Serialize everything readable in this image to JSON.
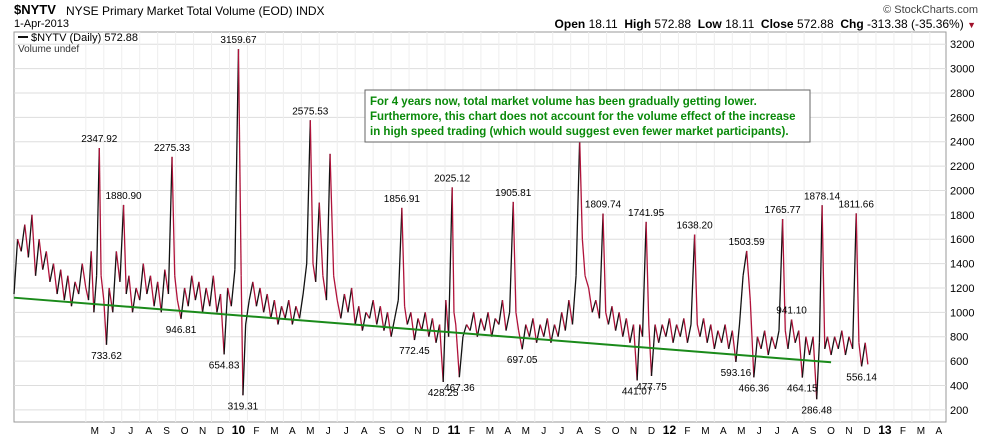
{
  "header": {
    "symbol": "$NYTV",
    "name": "NYSE Primary Market Total Volume (EOD)",
    "exchange": "INDX",
    "date": "1-Apr-2013",
    "brand": "© StockCharts.com",
    "ohlc": {
      "open_label": "Open",
      "open": "18.11",
      "high_label": "High",
      "high": "572.88",
      "low_label": "Low",
      "low": "18.11",
      "close_label": "Close",
      "close": "572.88",
      "chg_label": "Chg",
      "chg": "-313.38 (-35.36%)"
    }
  },
  "legend": {
    "series": "$NYTV (Daily) 572.88",
    "volume": "Volume undef"
  },
  "annotation": {
    "lines": [
      "For 4 years now, total market volume has been gradually getting lower.",
      "Furthermore, this chart does not account for the volume effect of the increase",
      "in high speed trading (which would suggest even fewer market participants)."
    ]
  },
  "colors": {
    "series_up": "#111111",
    "series_down": "#b0123a",
    "trend": "#1a8a1a",
    "annotation_text": "#0a8a0a",
    "grid": "#dddddd"
  },
  "chart_data": {
    "type": "line",
    "ylim": [
      100,
      3300
    ],
    "yticks": [
      200,
      400,
      600,
      800,
      1000,
      1200,
      1400,
      1600,
      1800,
      2000,
      2200,
      2400,
      2600,
      2800,
      3000,
      3200
    ],
    "x_labels": [
      "M",
      "J",
      "J",
      "A",
      "S",
      "O",
      "N",
      "D",
      "10",
      "F",
      "M",
      "A",
      "M",
      "J",
      "J",
      "A",
      "S",
      "O",
      "N",
      "D",
      "11",
      "F",
      "M",
      "A",
      "M",
      "J",
      "J",
      "A",
      "S",
      "O",
      "N",
      "D",
      "12",
      "F",
      "M",
      "A",
      "M",
      "J",
      "J",
      "A",
      "S",
      "O",
      "N",
      "D",
      "13",
      "F",
      "M",
      "A"
    ],
    "x_label_months": [
      4,
      5,
      6,
      7,
      8,
      9,
      10,
      11,
      12,
      13,
      14,
      15,
      16,
      17,
      18,
      19,
      20,
      21,
      22,
      23,
      24,
      25,
      26,
      27,
      28,
      29,
      30,
      31,
      32,
      33,
      34,
      35,
      36,
      37,
      38,
      39,
      40,
      41,
      42,
      43,
      44,
      45,
      46,
      47,
      48,
      49,
      50,
      51
    ],
    "series_name": "$NYTV (Daily)",
    "series": [
      [
        0.0,
        1150
      ],
      [
        0.2,
        1600
      ],
      [
        0.4,
        1500
      ],
      [
        0.6,
        1720
      ],
      [
        0.8,
        1450
      ],
      [
        1.0,
        1800
      ],
      [
        1.2,
        1300
      ],
      [
        1.4,
        1600
      ],
      [
        1.6,
        1350
      ],
      [
        1.8,
        1500
      ],
      [
        2.0,
        1250
      ],
      [
        2.2,
        1400
      ],
      [
        2.4,
        1150
      ],
      [
        2.6,
        1350
      ],
      [
        2.8,
        1100
      ],
      [
        3.0,
        1300
      ],
      [
        3.2,
        1050
      ],
      [
        3.4,
        1250
      ],
      [
        3.6,
        1150
      ],
      [
        3.8,
        1400
      ],
      [
        4.0,
        1200
      ],
      [
        4.15,
        1100
      ],
      [
        4.3,
        1500
      ],
      [
        4.45,
        1000
      ],
      [
        4.6,
        1300
      ],
      [
        4.75,
        2347.92
      ],
      [
        4.85,
        1300
      ],
      [
        5.0,
        1100
      ],
      [
        5.15,
        733.62
      ],
      [
        5.3,
        1200
      ],
      [
        5.5,
        1000
      ],
      [
        5.7,
        1500
      ],
      [
        5.9,
        1250
      ],
      [
        6.1,
        1880.9
      ],
      [
        6.25,
        1150
      ],
      [
        6.4,
        1300
      ],
      [
        6.6,
        1000
      ],
      [
        6.8,
        1200
      ],
      [
        7.0,
        1100
      ],
      [
        7.2,
        1400
      ],
      [
        7.4,
        1150
      ],
      [
        7.6,
        1300
      ],
      [
        7.8,
        1050
      ],
      [
        8.0,
        1250
      ],
      [
        8.2,
        1000
      ],
      [
        8.4,
        1350
      ],
      [
        8.6,
        1150
      ],
      [
        8.8,
        2275.33
      ],
      [
        8.95,
        1300
      ],
      [
        9.1,
        1100
      ],
      [
        9.3,
        946.81
      ],
      [
        9.5,
        1200
      ],
      [
        9.7,
        1050
      ],
      [
        9.9,
        1300
      ],
      [
        10.1,
        1100
      ],
      [
        10.3,
        1250
      ],
      [
        10.5,
        1000
      ],
      [
        10.7,
        1200
      ],
      [
        10.9,
        1050
      ],
      [
        11.1,
        1300
      ],
      [
        11.3,
        1000
      ],
      [
        11.5,
        1150
      ],
      [
        11.7,
        654.83
      ],
      [
        11.9,
        1200
      ],
      [
        12.1,
        1050
      ],
      [
        12.3,
        1350
      ],
      [
        12.5,
        3159.67
      ],
      [
        12.65,
        1300
      ],
      [
        12.75,
        319.31
      ],
      [
        12.9,
        900
      ],
      [
        13.1,
        1100
      ],
      [
        13.3,
        1250
      ],
      [
        13.5,
        1050
      ],
      [
        13.7,
        1200
      ],
      [
        13.9,
        1000
      ],
      [
        14.1,
        1150
      ],
      [
        14.3,
        950
      ],
      [
        14.5,
        1100
      ],
      [
        14.7,
        900
      ],
      [
        14.9,
        1050
      ],
      [
        15.1,
        950
      ],
      [
        15.3,
        1100
      ],
      [
        15.5,
        900
      ],
      [
        15.7,
        1050
      ],
      [
        15.9,
        950
      ],
      [
        16.1,
        1150
      ],
      [
        16.3,
        1400
      ],
      [
        16.5,
        2575.53
      ],
      [
        16.65,
        1400
      ],
      [
        16.8,
        1250
      ],
      [
        17.0,
        1900
      ],
      [
        17.2,
        1300
      ],
      [
        17.4,
        1100
      ],
      [
        17.6,
        2300
      ],
      [
        17.8,
        1300
      ],
      [
        18.0,
        1100
      ],
      [
        18.2,
        950
      ],
      [
        18.4,
        1150
      ],
      [
        18.6,
        1000
      ],
      [
        18.8,
        1200
      ],
      [
        19.0,
        900
      ],
      [
        19.2,
        1050
      ],
      [
        19.4,
        850
      ],
      [
        19.6,
        1000
      ],
      [
        19.8,
        950
      ],
      [
        20.0,
        1100
      ],
      [
        20.2,
        900
      ],
      [
        20.4,
        1050
      ],
      [
        20.6,
        850
      ],
      [
        20.8,
        1000
      ],
      [
        21.0,
        800
      ],
      [
        21.2,
        950
      ],
      [
        21.4,
        1100
      ],
      [
        21.6,
        1856.91
      ],
      [
        21.75,
        1050
      ],
      [
        21.9,
        900
      ],
      [
        22.1,
        1000
      ],
      [
        22.3,
        772.45
      ],
      [
        22.5,
        950
      ],
      [
        22.7,
        850
      ],
      [
        22.9,
        1000
      ],
      [
        23.1,
        800
      ],
      [
        23.3,
        950
      ],
      [
        23.5,
        750
      ],
      [
        23.7,
        900
      ],
      [
        23.9,
        428.25
      ],
      [
        24.05,
        1100
      ],
      [
        24.2,
        800
      ],
      [
        24.4,
        2025.12
      ],
      [
        24.5,
        1000
      ],
      [
        24.6,
        900
      ],
      [
        24.8,
        467.36
      ],
      [
        25.0,
        800
      ],
      [
        25.2,
        900
      ],
      [
        25.4,
        850
      ],
      [
        25.6,
        1000
      ],
      [
        25.8,
        800
      ],
      [
        26.0,
        950
      ],
      [
        26.2,
        850
      ],
      [
        26.4,
        1000
      ],
      [
        26.6,
        800
      ],
      [
        26.8,
        950
      ],
      [
        27.0,
        900
      ],
      [
        27.2,
        1100
      ],
      [
        27.4,
        850
      ],
      [
        27.6,
        1000
      ],
      [
        27.8,
        1905.81
      ],
      [
        27.95,
        1000
      ],
      [
        28.1,
        850
      ],
      [
        28.3,
        697.05
      ],
      [
        28.5,
        900
      ],
      [
        28.7,
        800
      ],
      [
        28.9,
        950
      ],
      [
        29.1,
        750
      ],
      [
        29.3,
        900
      ],
      [
        29.5,
        800
      ],
      [
        29.7,
        950
      ],
      [
        29.9,
        750
      ],
      [
        30.1,
        900
      ],
      [
        30.3,
        800
      ],
      [
        30.5,
        1000
      ],
      [
        30.7,
        850
      ],
      [
        30.9,
        1100
      ],
      [
        31.1,
        900
      ],
      [
        31.3,
        1300
      ],
      [
        31.5,
        2425
      ],
      [
        31.65,
        1600
      ],
      [
        31.8,
        1300
      ],
      [
        32.0,
        1200
      ],
      [
        32.2,
        1000
      ],
      [
        32.4,
        1100
      ],
      [
        32.6,
        950
      ],
      [
        32.8,
        1809.74
      ],
      [
        32.95,
        1000
      ],
      [
        33.1,
        900
      ],
      [
        33.3,
        1050
      ],
      [
        33.5,
        850
      ],
      [
        33.7,
        1000
      ],
      [
        33.9,
        800
      ],
      [
        34.1,
        950
      ],
      [
        34.3,
        750
      ],
      [
        34.5,
        900
      ],
      [
        34.7,
        441.07
      ],
      [
        34.85,
        900
      ],
      [
        35.0,
        800
      ],
      [
        35.2,
        1741.95
      ],
      [
        35.35,
        900
      ],
      [
        35.5,
        477.75
      ],
      [
        35.7,
        900
      ],
      [
        35.9,
        750
      ],
      [
        36.1,
        900
      ],
      [
        36.3,
        800
      ],
      [
        36.5,
        950
      ],
      [
        36.7,
        750
      ],
      [
        36.9,
        900
      ],
      [
        37.1,
        800
      ],
      [
        37.3,
        950
      ],
      [
        37.5,
        750
      ],
      [
        37.7,
        900
      ],
      [
        37.9,
        1638.2
      ],
      [
        38.05,
        900
      ],
      [
        38.2,
        800
      ],
      [
        38.4,
        950
      ],
      [
        38.6,
        750
      ],
      [
        38.8,
        900
      ],
      [
        39.0,
        700
      ],
      [
        39.2,
        850
      ],
      [
        39.4,
        750
      ],
      [
        39.6,
        900
      ],
      [
        39.8,
        700
      ],
      [
        40.0,
        850
      ],
      [
        40.2,
        593.16
      ],
      [
        40.4,
        900
      ],
      [
        40.6,
        1300
      ],
      [
        40.8,
        1503.59
      ],
      [
        41.0,
        1100
      ],
      [
        41.2,
        466.36
      ],
      [
        41.4,
        800
      ],
      [
        41.6,
        700
      ],
      [
        41.8,
        850
      ],
      [
        42.0,
        650
      ],
      [
        42.2,
        800
      ],
      [
        42.4,
        700
      ],
      [
        42.6,
        850
      ],
      [
        42.8,
        1765.77
      ],
      [
        42.95,
        850
      ],
      [
        43.1,
        700
      ],
      [
        43.3,
        941.1
      ],
      [
        43.5,
        750
      ],
      [
        43.7,
        850
      ],
      [
        43.9,
        464.15
      ],
      [
        44.1,
        800
      ],
      [
        44.3,
        650
      ],
      [
        44.5,
        800
      ],
      [
        44.7,
        286.48
      ],
      [
        44.85,
        750
      ],
      [
        45.0,
        1878.14
      ],
      [
        45.15,
        700
      ],
      [
        45.3,
        800
      ],
      [
        45.5,
        650
      ],
      [
        45.7,
        800
      ],
      [
        45.9,
        700
      ],
      [
        46.1,
        850
      ],
      [
        46.3,
        650
      ],
      [
        46.5,
        800
      ],
      [
        46.7,
        700
      ],
      [
        46.9,
        1811.66
      ],
      [
        47.05,
        750
      ],
      [
        47.2,
        556.14
      ],
      [
        47.4,
        750
      ],
      [
        47.55,
        572.88
      ]
    ],
    "trendline": [
      [
        0.0,
        1120
      ],
      [
        45.5,
        590
      ]
    ],
    "point_labels": [
      {
        "x": 4.75,
        "y": 2347.92,
        "text": "2347.92",
        "pos": "above"
      },
      {
        "x": 6.1,
        "y": 1880.9,
        "text": "1880.90",
        "pos": "above"
      },
      {
        "x": 8.8,
        "y": 2275.33,
        "text": "2275.33",
        "pos": "above"
      },
      {
        "x": 12.5,
        "y": 3159.67,
        "text": "3159.67",
        "pos": "above"
      },
      {
        "x": 16.5,
        "y": 2575.53,
        "text": "2575.53",
        "pos": "above"
      },
      {
        "x": 21.6,
        "y": 1856.91,
        "text": "1856.91",
        "pos": "above"
      },
      {
        "x": 24.4,
        "y": 2025.12,
        "text": "2025.12",
        "pos": "above"
      },
      {
        "x": 27.8,
        "y": 1905.81,
        "text": "1905.81",
        "pos": "above"
      },
      {
        "x": 32.8,
        "y": 1809.74,
        "text": "1809.74",
        "pos": "above"
      },
      {
        "x": 35.2,
        "y": 1741.95,
        "text": "1741.95",
        "pos": "above"
      },
      {
        "x": 37.9,
        "y": 1638.2,
        "text": "1638.20",
        "pos": "above"
      },
      {
        "x": 40.8,
        "y": 1503.59,
        "text": "1503.59",
        "pos": "above"
      },
      {
        "x": 42.8,
        "y": 1765.77,
        "text": "1765.77",
        "pos": "above"
      },
      {
        "x": 45.0,
        "y": 1878.14,
        "text": "1878.14",
        "pos": "above"
      },
      {
        "x": 46.9,
        "y": 1811.66,
        "text": "1811.66",
        "pos": "above"
      },
      {
        "x": 43.3,
        "y": 941.1,
        "text": "941.10",
        "pos": "above"
      },
      {
        "x": 5.15,
        "y": 733.62,
        "text": "733.62",
        "pos": "below"
      },
      {
        "x": 9.3,
        "y": 946.81,
        "text": "946.81",
        "pos": "below"
      },
      {
        "x": 11.7,
        "y": 654.83,
        "text": "654.83",
        "pos": "below"
      },
      {
        "x": 12.75,
        "y": 319.31,
        "text": "319.31",
        "pos": "below"
      },
      {
        "x": 22.3,
        "y": 772.45,
        "text": "772.45",
        "pos": "below"
      },
      {
        "x": 23.9,
        "y": 428.25,
        "text": "428.25",
        "pos": "below"
      },
      {
        "x": 24.8,
        "y": 467.36,
        "text": "467.36",
        "pos": "below"
      },
      {
        "x": 28.3,
        "y": 697.05,
        "text": "697.05",
        "pos": "below"
      },
      {
        "x": 34.7,
        "y": 441.07,
        "text": "441.07",
        "pos": "below"
      },
      {
        "x": 35.5,
        "y": 477.75,
        "text": "477.75",
        "pos": "below"
      },
      {
        "x": 40.2,
        "y": 593.16,
        "text": "593.16",
        "pos": "below"
      },
      {
        "x": 41.2,
        "y": 466.36,
        "text": "466.36",
        "pos": "below"
      },
      {
        "x": 43.9,
        "y": 464.15,
        "text": "464.15",
        "pos": "below"
      },
      {
        "x": 44.7,
        "y": 286.48,
        "text": "286.48",
        "pos": "below"
      },
      {
        "x": 47.2,
        "y": 556.14,
        "text": "556.14",
        "pos": "below"
      }
    ]
  }
}
